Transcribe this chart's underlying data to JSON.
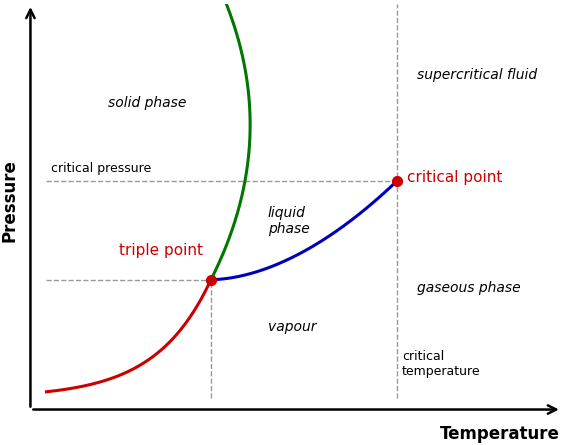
{
  "background_color": "#ffffff",
  "xlabel": "Temperature",
  "ylabel": "Pressure",
  "xlim": [
    0,
    10
  ],
  "ylim": [
    0,
    10
  ],
  "triple_point": [
    3.2,
    3.0
  ],
  "critical_point": [
    6.8,
    5.5
  ],
  "color_red": "#cc0000",
  "color_green": "#007700",
  "color_blue": "#0000bb",
  "color_dashed": "#999999",
  "color_text_red": "#cc0000",
  "color_text_black": "#000000",
  "color_axes": "#000000",
  "fontsize_axis_label": 12,
  "fontsize_phase_label": 10,
  "fontsize_point_label": 11,
  "fontsize_ref_label": 9,
  "line_width": 2.2
}
